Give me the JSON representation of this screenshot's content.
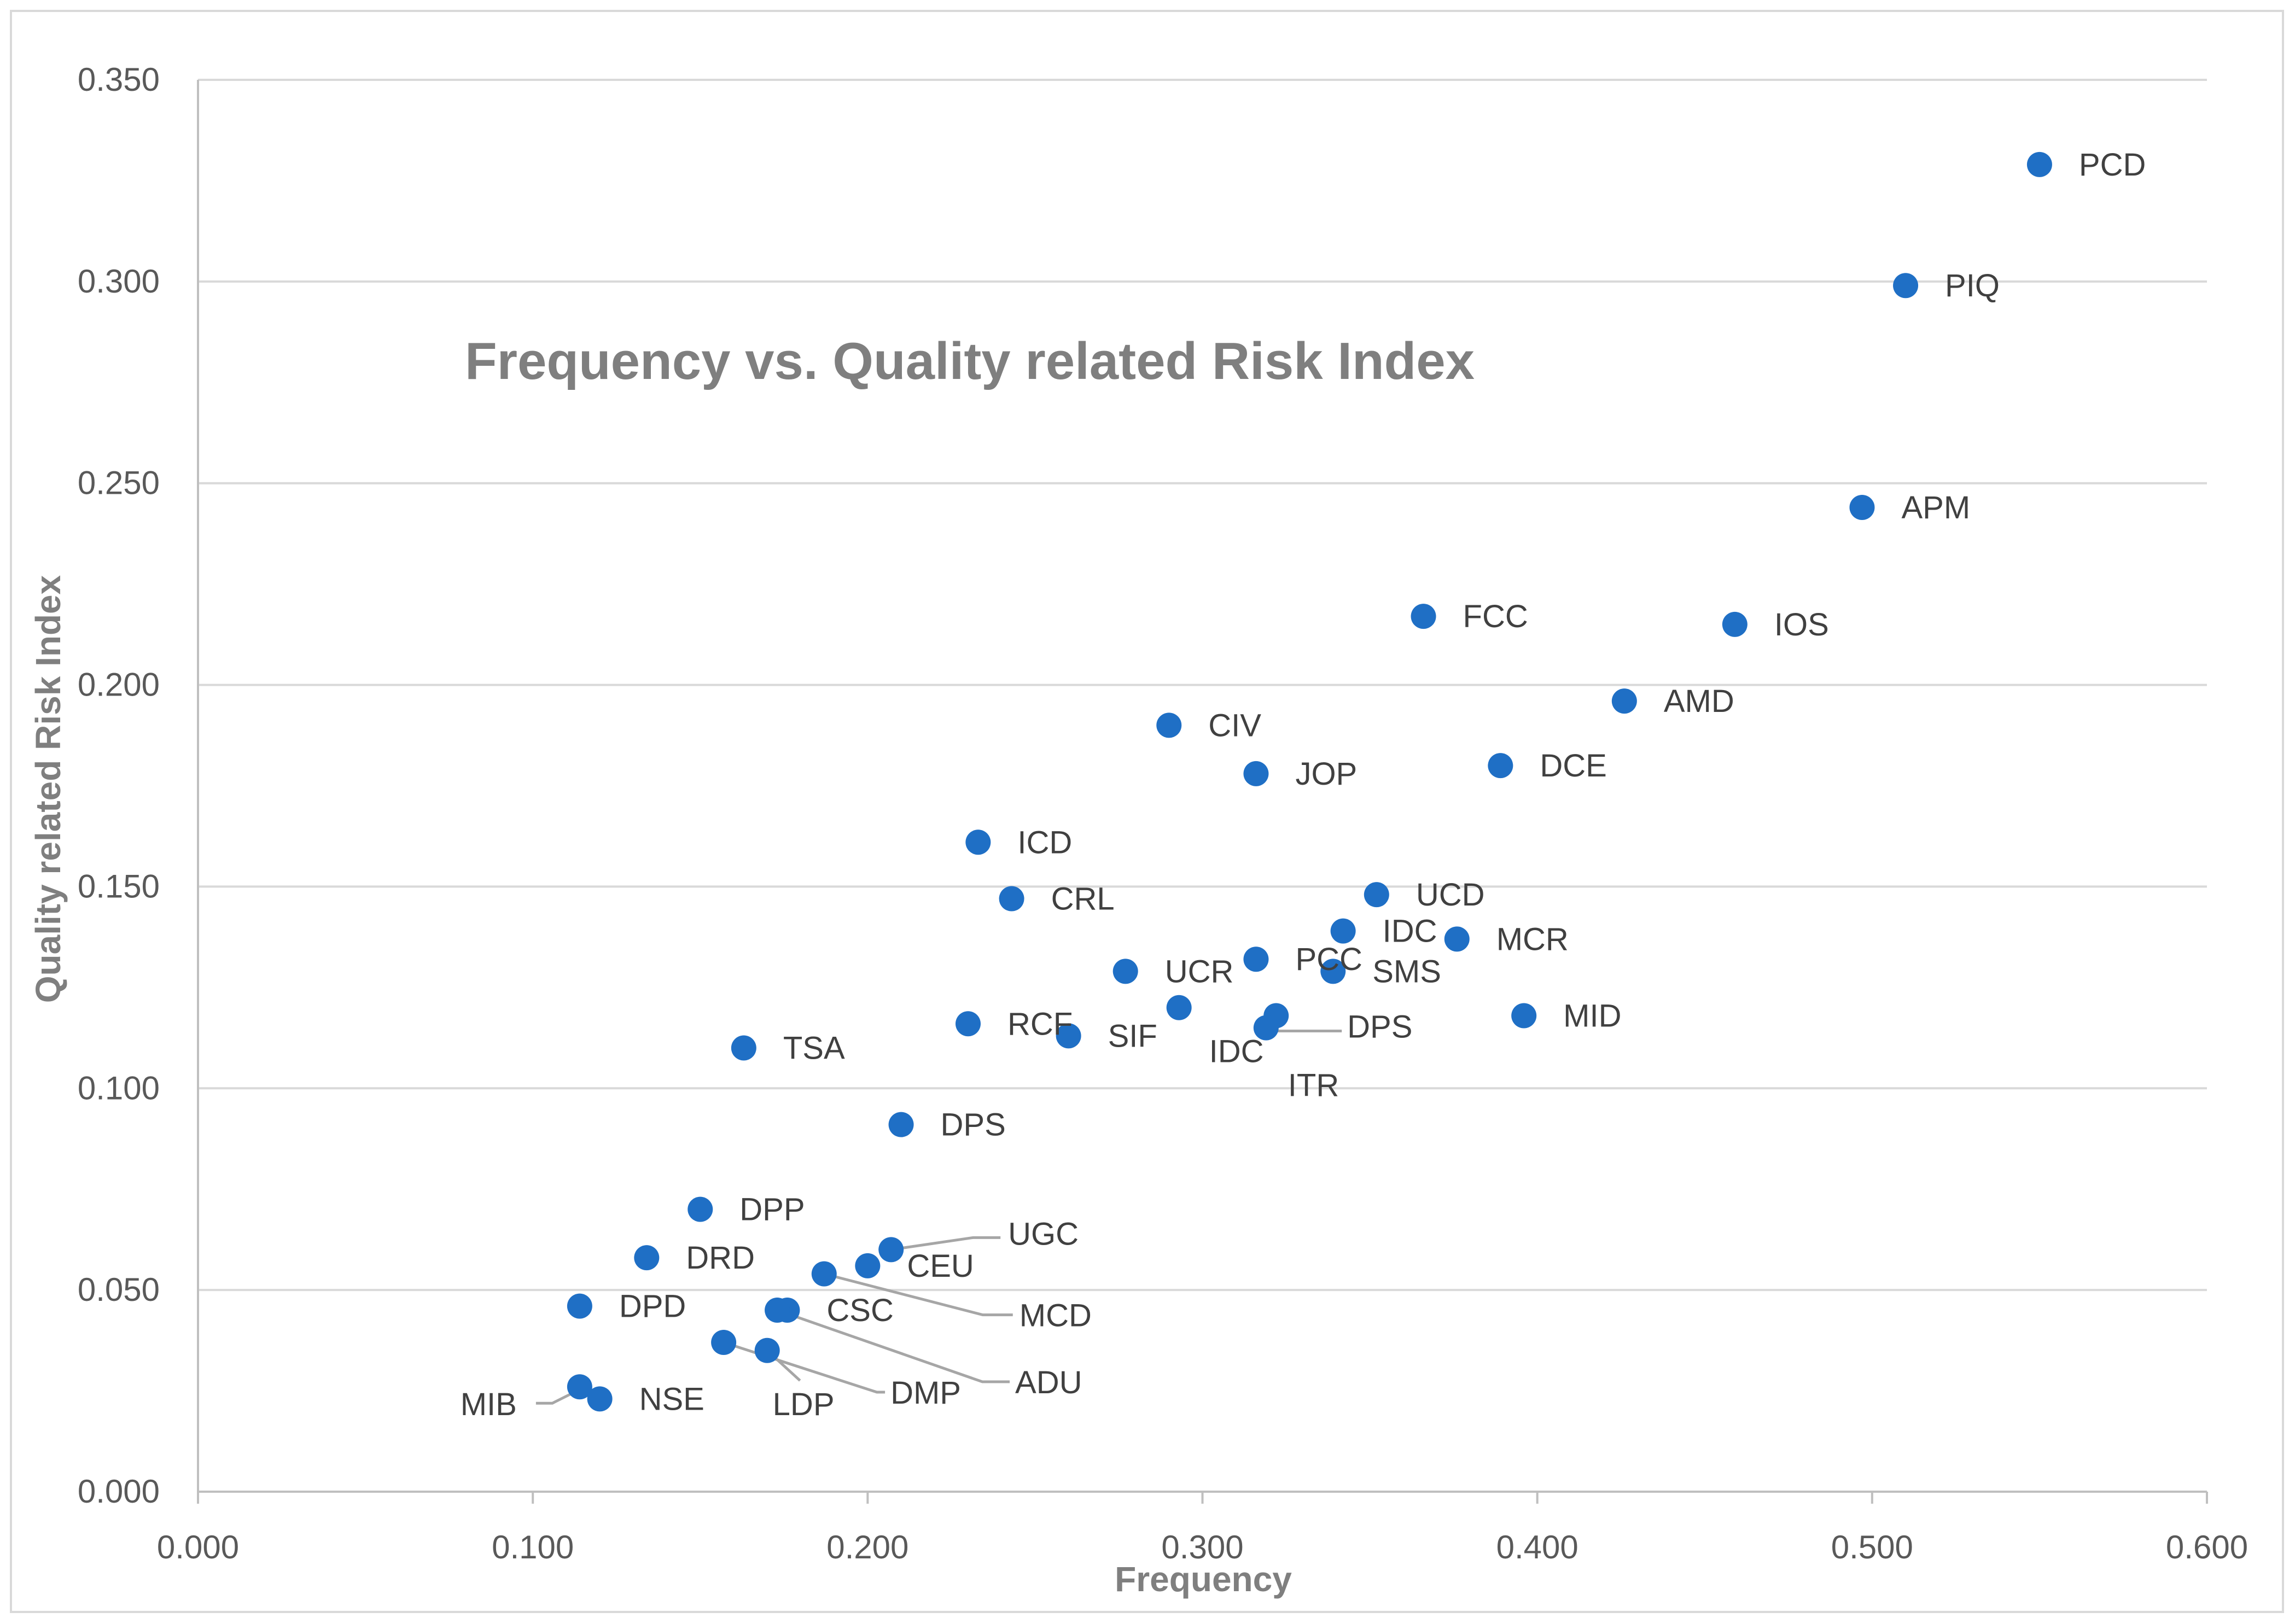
{
  "chart_data": {
    "type": "scatter",
    "title": "Frequency vs. Quality related Risk Index",
    "xlabel": "Frequency",
    "ylabel": "Quality related Risk Index",
    "xlim": [
      0,
      0.6
    ],
    "ylim": [
      0,
      0.35
    ],
    "grid": "horizontal",
    "x_ticks": [
      "0.000",
      "0.100",
      "0.200",
      "0.300",
      "0.400",
      "0.500",
      "0.600"
    ],
    "y_ticks": [
      "0.000",
      "0.050",
      "0.100",
      "0.150",
      "0.200",
      "0.250",
      "0.300",
      "0.350"
    ],
    "marker_color": "#1f6fc5",
    "leader_color": "#a6a6a6",
    "points": [
      {
        "label": "PCD",
        "x": 0.55,
        "y": 0.329
      },
      {
        "label": "PIQ",
        "x": 0.51,
        "y": 0.299
      },
      {
        "label": "APM",
        "x": 0.497,
        "y": 0.244
      },
      {
        "label": "FCC",
        "x": 0.366,
        "y": 0.217
      },
      {
        "label": "IOS",
        "x": 0.459,
        "y": 0.215
      },
      {
        "label": "AMD",
        "x": 0.426,
        "y": 0.196
      },
      {
        "label": "CIV",
        "x": 0.29,
        "y": 0.19
      },
      {
        "label": "JOP",
        "x": 0.316,
        "y": 0.178
      },
      {
        "label": "DCE",
        "x": 0.389,
        "y": 0.18
      },
      {
        "label": "ICD",
        "x": 0.233,
        "y": 0.161
      },
      {
        "label": "CRL",
        "x": 0.243,
        "y": 0.147
      },
      {
        "label": "UCD",
        "x": 0.352,
        "y": 0.148
      },
      {
        "label": "IDC",
        "x": 0.342,
        "y": 0.139
      },
      {
        "label": "MCR",
        "x": 0.376,
        "y": 0.137
      },
      {
        "label": "PCC",
        "x": 0.316,
        "y": 0.132
      },
      {
        "label": "SMS",
        "x": 0.339,
        "y": 0.129
      },
      {
        "label": "UCR",
        "x": 0.277,
        "y": 0.129
      },
      {
        "label": "MID",
        "x": 0.396,
        "y": 0.118
      },
      {
        "label": "DPS",
        "x": 0.322,
        "y": 0.118
      },
      {
        "label": "IDC",
        "x": 0.293,
        "y": 0.12
      },
      {
        "label": "ITR",
        "x": 0.319,
        "y": 0.115
      },
      {
        "label": "RCF",
        "x": 0.23,
        "y": 0.116
      },
      {
        "label": "SIF",
        "x": 0.26,
        "y": 0.113
      },
      {
        "label": "TSA",
        "x": 0.163,
        "y": 0.11
      },
      {
        "label": "DPS",
        "x": 0.21,
        "y": 0.091
      },
      {
        "label": "DPP",
        "x": 0.15,
        "y": 0.07
      },
      {
        "label": "DRD",
        "x": 0.134,
        "y": 0.058
      },
      {
        "label": "UGC",
        "x": 0.207,
        "y": 0.06
      },
      {
        "label": "CEU",
        "x": 0.2,
        "y": 0.056
      },
      {
        "label": "MCD",
        "x": 0.187,
        "y": 0.054
      },
      {
        "label": "DPD",
        "x": 0.114,
        "y": 0.046
      },
      {
        "label": "CSC",
        "x": 0.176,
        "y": 0.045
      },
      {
        "label": "ADU",
        "x": 0.173,
        "y": 0.045
      },
      {
        "label": "DMP",
        "x": 0.157,
        "y": 0.037
      },
      {
        "label": "LDP",
        "x": 0.17,
        "y": 0.035
      },
      {
        "label": "MIB",
        "x": 0.114,
        "y": 0.026
      },
      {
        "label": "NSE",
        "x": 0.12,
        "y": 0.023
      }
    ]
  }
}
